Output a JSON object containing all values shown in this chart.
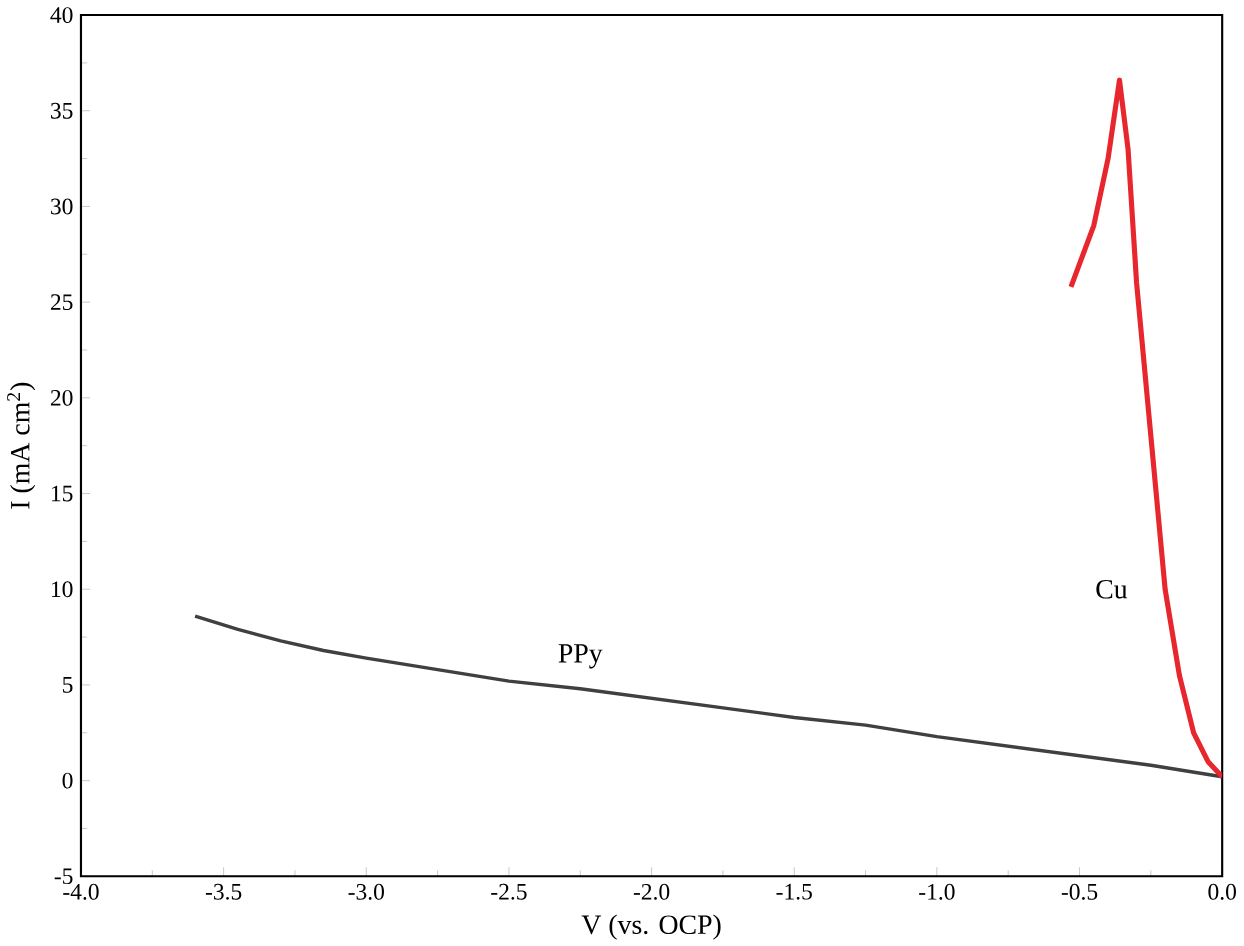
{
  "chart_data": {
    "type": "line",
    "xlabel": "V (vs. OCP)",
    "ylabel": "I (mA cm$^{2}$)",
    "xlim": [
      -4,
      0
    ],
    "ylim": [
      -5,
      40
    ],
    "xticks": [
      {
        "value": -4,
        "label": "-4.0"
      },
      {
        "value": -3.5,
        "label": "-3.5"
      },
      {
        "value": -3,
        "label": "-3.0"
      },
      {
        "value": -2.5,
        "label": "-2.5"
      },
      {
        "value": -2,
        "label": "-2.0"
      },
      {
        "value": -1.5,
        "label": "-1.5"
      },
      {
        "value": -1,
        "label": "-1.0"
      },
      {
        "value": -0.5,
        "label": "-0.5"
      },
      {
        "value": 0,
        "label": "0.0"
      }
    ],
    "yticks": [
      -5,
      0,
      5,
      10,
      15,
      20,
      25,
      30,
      35,
      40
    ],
    "grid": false,
    "legend": false,
    "marker": "none",
    "line_style": "solid",
    "series": [
      {
        "name": "PPy",
        "color": "#404040",
        "x": [
          -3.6,
          -3.45,
          -3.3,
          -3.15,
          -3.0,
          -2.75,
          -2.5,
          -2.25,
          -2.0,
          -1.75,
          -1.5,
          -1.25,
          -1.0,
          -0.75,
          -0.5,
          -0.25,
          0
        ],
        "values": [
          8.6,
          7.9,
          7.3,
          6.8,
          6.4,
          5.8,
          5.2,
          4.8,
          4.3,
          3.8,
          3.3,
          2.9,
          2.3,
          1.8,
          1.3,
          0.8,
          0.2
        ]
      },
      {
        "name": "Cu",
        "color": "#e8262e",
        "x": [
          -0.53,
          -0.45,
          -0.4,
          -0.36,
          -0.33,
          -0.3,
          -0.25,
          -0.2,
          -0.15,
          -0.1,
          -0.05,
          0
        ],
        "values": [
          25.8,
          29,
          32.5,
          36.6,
          33,
          26,
          18,
          10,
          5.5,
          2.5,
          1.0,
          0.2
        ]
      }
    ]
  }
}
